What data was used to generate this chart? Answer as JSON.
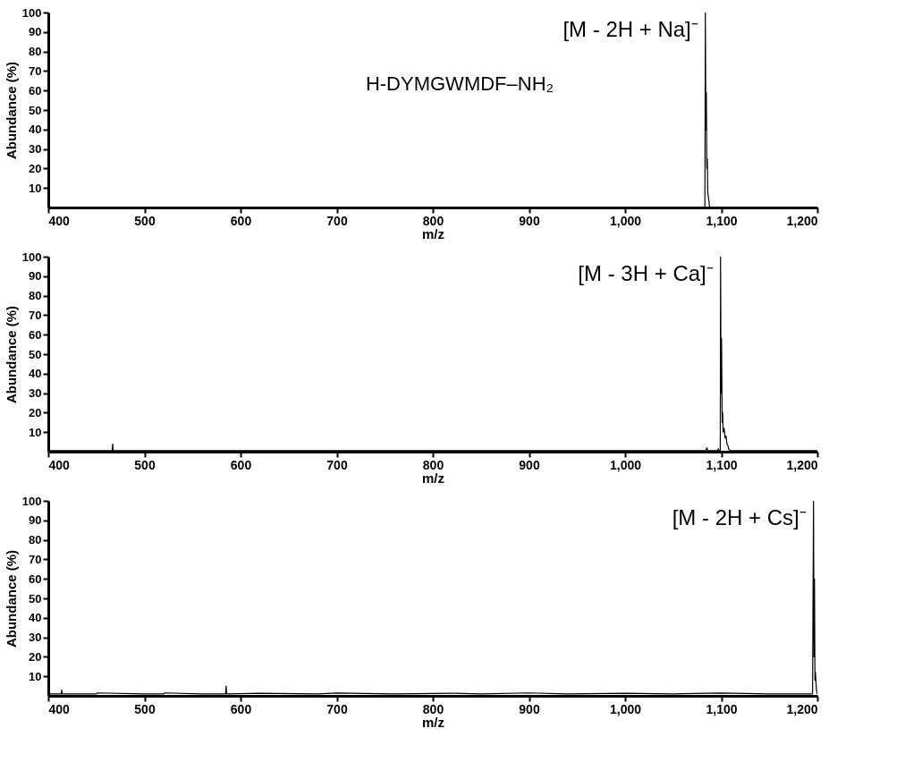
{
  "chart_data": [
    {
      "type": "line",
      "xlabel": "m/z",
      "ylabel": "Abundance (%)",
      "xlim": [
        400,
        1200
      ],
      "ylim": [
        0,
        100
      ],
      "xticks": [
        400,
        500,
        600,
        700,
        800,
        900,
        {
          "value": 1000,
          "label": "1,000"
        },
        {
          "value": 1100,
          "label": "1,100"
        },
        {
          "value": 1200,
          "label": "1,200"
        }
      ],
      "yticks": [
        10,
        20,
        30,
        40,
        50,
        60,
        70,
        80,
        90,
        100
      ],
      "grid": false,
      "marker": "none",
      "annotations": [
        {
          "text": "[M - 2H + Na]⁻",
          "x": 1083.5,
          "y": 100
        },
        "H-DYMGWMDF–NH₂"
      ],
      "series": [
        {
          "color": "#000000",
          "x": [
            400,
            1082,
            1083,
            1083.5,
            1084,
            1084.5,
            1085,
            1085.5,
            1086,
            1087,
            1088,
            1200
          ],
          "values": [
            0,
            0,
            0,
            100,
            40,
            59,
            20,
            25,
            8,
            4,
            0,
            0
          ]
        }
      ]
    },
    {
      "type": "line",
      "xlabel": "m/z",
      "ylabel": "Abundance (%)",
      "xlim": [
        400,
        1200
      ],
      "ylim": [
        0,
        100
      ],
      "xticks": [
        400,
        500,
        600,
        700,
        800,
        900,
        {
          "value": 1000,
          "label": "1,000"
        },
        {
          "value": 1100,
          "label": "1,100"
        },
        {
          "value": 1200,
          "label": "1,200"
        }
      ],
      "yticks": [
        10,
        20,
        30,
        40,
        50,
        60,
        70,
        80,
        90,
        100
      ],
      "grid": false,
      "marker": "none",
      "annotations": [
        {
          "text": "[M - 3H + Ca]⁻",
          "x": 1099.3,
          "y": 100
        }
      ],
      "series": [
        {
          "color": "#000000",
          "x": [
            400,
            466.5,
            467,
            467.5,
            1084,
            1085,
            1086,
            1096,
            1097,
            1098,
            1099,
            1099.3,
            1099.8,
            1100.3,
            1101,
            1101.5,
            1102,
            1103,
            1104,
            1105,
            1106,
            1107,
            1108,
            1110,
            1200
          ],
          "values": [
            0.5,
            0.5,
            4,
            0.5,
            0.5,
            2,
            0.5,
            0.5,
            1.5,
            0.5,
            0,
            100,
            30,
            58,
            15,
            20,
            10,
            12,
            7,
            8,
            4,
            3,
            1,
            0.5,
            0.5
          ]
        }
      ]
    },
    {
      "type": "line",
      "xlabel": "m/z",
      "ylabel": "Abundance (%)",
      "xlim": [
        400,
        1200
      ],
      "ylim": [
        0,
        100
      ],
      "xticks": [
        400,
        500,
        600,
        700,
        800,
        900,
        {
          "value": 1000,
          "label": "1,000"
        },
        {
          "value": 1100,
          "label": "1,100"
        },
        {
          "value": 1200,
          "label": "1,200"
        }
      ],
      "yticks": [
        10,
        20,
        30,
        40,
        50,
        60,
        70,
        80,
        90,
        100
      ],
      "grid": false,
      "marker": "none",
      "annotations": [
        {
          "text": "[M - 2H + Cs]⁻",
          "x": 1196,
          "y": 100
        }
      ],
      "series": [
        {
          "color": "#000000",
          "x": [
            400,
            413.5,
            414,
            414.5,
            450,
            451,
            500,
            520,
            521,
            560,
            584.5,
            585,
            585.5,
            620,
            680,
            700,
            760,
            820,
            850,
            900,
            940,
            1000,
            1050,
            1100,
            1150,
            1195,
            1196,
            1196.5,
            1197,
            1197.5,
            1198,
            1199,
            1200
          ],
          "values": [
            1,
            1,
            3,
            1,
            1,
            1.5,
            1,
            1,
            1.5,
            1,
            1,
            5,
            1,
            1.3,
            1,
            1.4,
            1,
            1.3,
            1,
            1.5,
            1,
            1.3,
            1,
            1.4,
            1,
            1,
            100,
            20,
            60,
            8,
            12,
            3,
            1
          ]
        }
      ]
    }
  ]
}
